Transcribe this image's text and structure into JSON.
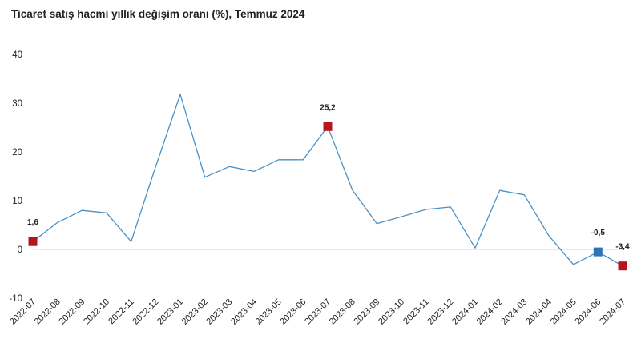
{
  "chart_data": {
    "type": "line",
    "title": "Ticaret satış hacmi yıllık değişim oranı (%), Temmuz 2024",
    "xlabel": "",
    "ylabel": "",
    "ylim": [
      -10,
      40
    ],
    "yticks": [
      -10,
      0,
      10,
      20,
      30,
      40
    ],
    "grid": false,
    "legend": "none",
    "line_color": "#4a90c4",
    "categories": [
      "2022-07",
      "2022-08",
      "2022-09",
      "2022-10",
      "2022-11",
      "2022-12",
      "2023-01",
      "2023-02",
      "2023-03",
      "2023-04",
      "2023-05",
      "2023-06",
      "2023-07",
      "2023-08",
      "2023-09",
      "2023-10",
      "2023-11",
      "2023-12",
      "2024-01",
      "2024-02",
      "2024-03",
      "2024-04",
      "2024-05",
      "2024-06",
      "2024-07"
    ],
    "series": [
      {
        "values": [
          1.6,
          5.5,
          8.0,
          7.5,
          1.6,
          17.0,
          31.8,
          14.8,
          17.0,
          16.0,
          18.4,
          18.4,
          25.2,
          12.2,
          5.3,
          6.7,
          8.2,
          8.7,
          0.3,
          12.1,
          11.2,
          2.8,
          -3.1,
          -0.5,
          -3.4
        ]
      }
    ],
    "annotations": [
      {
        "category": "2022-07",
        "value": 1.6,
        "text": "1,6",
        "marker_color": "#b5151b"
      },
      {
        "category": "2023-07",
        "value": 25.2,
        "text": "25,2",
        "marker_color": "#b5151b"
      },
      {
        "category": "2024-06",
        "value": -0.5,
        "text": "-0,5",
        "marker_color": "#2e75b6"
      },
      {
        "category": "2024-07",
        "value": -3.4,
        "text": "-3,4",
        "marker_color": "#b5151b"
      }
    ]
  }
}
